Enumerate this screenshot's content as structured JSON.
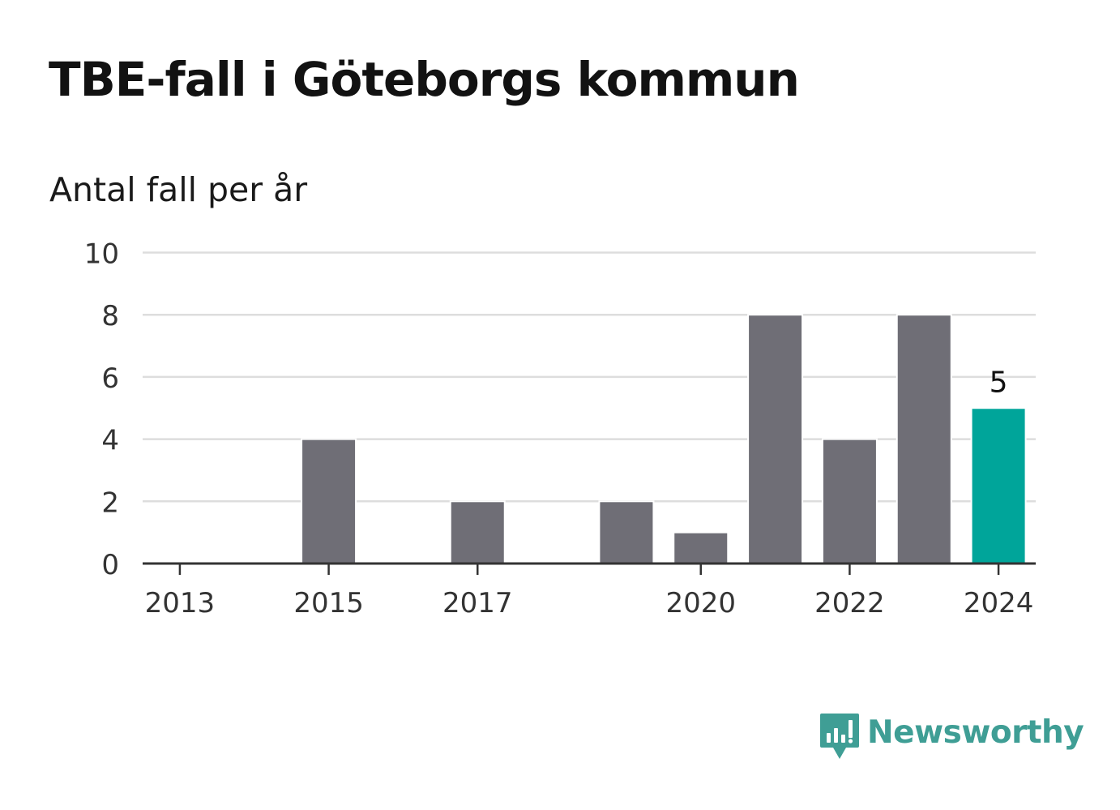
{
  "title": "TBE-fall i Göteborgs kommun",
  "subtitle": "Antal fall per år",
  "brand": {
    "name": "Newsworthy",
    "color": "#3f9e95",
    "icon": "newsworthy-logo-icon"
  },
  "colors": {
    "bar": "#6f6e76",
    "highlight": "#00a59a",
    "grid": "#dddddd",
    "axis": "#333333",
    "text": "#333333"
  },
  "chart_data": {
    "type": "bar",
    "title": "TBE-fall i Göteborgs kommun",
    "subtitle": "Antal fall per år",
    "xlabel": "",
    "ylabel": "",
    "ylim": [
      0,
      10
    ],
    "yticks": [
      0,
      2,
      4,
      6,
      8,
      10
    ],
    "grid": true,
    "legend": "none",
    "categories": [
      "2013",
      "2014",
      "2015",
      "2016",
      "2017",
      "2018",
      "2019",
      "2020",
      "2021",
      "2022",
      "2023",
      "2024"
    ],
    "values": [
      0,
      0,
      4,
      0,
      2,
      0,
      2,
      1,
      8,
      4,
      8,
      5
    ],
    "xtick_labels": [
      "2013",
      "2015",
      "2017",
      "2020",
      "2022",
      "2024"
    ],
    "highlight_category": "2024",
    "annotations": [
      {
        "category": "2024",
        "text": "5"
      }
    ]
  }
}
